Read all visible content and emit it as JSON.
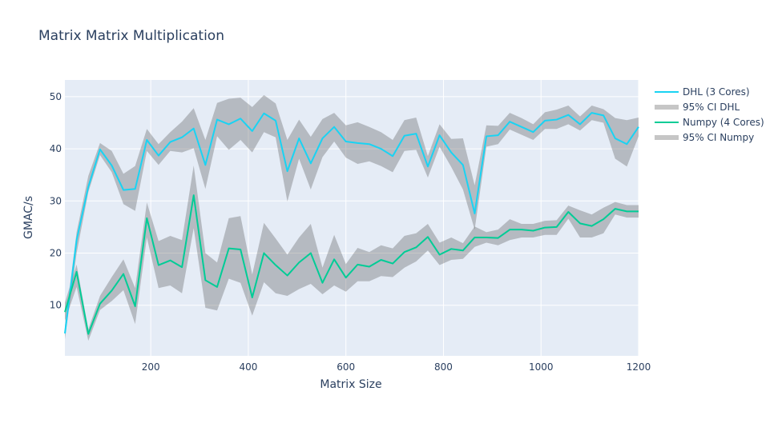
{
  "chart_data": {
    "type": "line",
    "title": "Matrix Matrix Multiplication",
    "xlabel": "Matrix Size",
    "ylabel": "GMAC/s",
    "xlim": [
      24,
      1200
    ],
    "ylim": [
      0.3,
      53.2
    ],
    "xticks": [
      200,
      400,
      600,
      800,
      1000,
      1200
    ],
    "yticks": [
      10,
      20,
      30,
      40,
      50
    ],
    "grid": true,
    "legend_position": "right",
    "x": [
      24,
      48,
      72,
      96,
      120,
      144,
      168,
      192,
      216,
      240,
      264,
      288,
      312,
      336,
      360,
      384,
      408,
      432,
      456,
      480,
      504,
      528,
      552,
      576,
      600,
      624,
      648,
      672,
      696,
      720,
      744,
      768,
      792,
      816,
      840,
      864,
      888,
      912,
      936,
      960,
      984,
      1008,
      1032,
      1056,
      1080,
      1104,
      1128,
      1152,
      1176,
      1200
    ],
    "series": [
      {
        "name": "DHL (3 Cores)",
        "ci_name": "95% CI DHL",
        "color": "#19d3f3",
        "values": [
          4.6,
          22.5,
          32.7,
          39.9,
          36.8,
          32.1,
          32.3,
          41.7,
          38.7,
          41.3,
          42.2,
          43.9,
          36.9,
          45.6,
          44.7,
          45.8,
          43.4,
          46.8,
          45.4,
          35.7,
          42.0,
          37.2,
          42.0,
          44.2,
          41.4,
          41.1,
          40.9,
          40.0,
          38.6,
          42.5,
          42.9,
          36.6,
          42.6,
          39.3,
          36.9,
          27.6,
          42.4,
          42.6,
          45.2,
          44.2,
          43.2,
          45.4,
          45.6,
          46.5,
          44.7,
          46.9,
          46.4,
          42.0,
          40.9,
          44.2
        ],
        "upper": [
          6.0,
          24.0,
          34.8,
          41.1,
          39.6,
          35.2,
          36.7,
          43.8,
          40.9,
          43.2,
          45.2,
          47.8,
          41.7,
          48.8,
          49.6,
          49.8,
          48.0,
          50.3,
          48.7,
          41.7,
          45.6,
          42.3,
          45.7,
          46.9,
          44.5,
          45.1,
          44.2,
          43.2,
          41.7,
          45.5,
          46.0,
          38.6,
          44.7,
          41.9,
          42.0,
          33.0,
          44.5,
          44.4,
          46.9,
          45.9,
          44.7,
          47.0,
          47.5,
          48.3,
          46.2,
          48.3,
          47.6,
          45.9,
          45.5,
          46.0
        ],
        "lower": [
          3.5,
          20.0,
          31.7,
          38.8,
          35.5,
          29.4,
          28.1,
          39.6,
          36.9,
          39.6,
          39.3,
          40.1,
          32.3,
          42.4,
          39.8,
          41.7,
          39.3,
          43.2,
          42.2,
          29.9,
          38.1,
          32.2,
          38.4,
          41.4,
          38.3,
          37.1,
          37.6,
          36.7,
          35.5,
          39.6,
          39.8,
          34.5,
          40.4,
          36.5,
          32.2,
          24.5,
          40.4,
          40.9,
          43.7,
          42.7,
          41.7,
          43.8,
          43.8,
          44.7,
          43.5,
          45.5,
          45.0,
          38.1,
          36.6,
          42.4
        ]
      },
      {
        "name": "Numpy (4 Cores)",
        "ci_name": "95% CI Numpy",
        "color": "#00cc96",
        "values": [
          8.7,
          16.4,
          4.5,
          10.3,
          12.8,
          16.0,
          9.8,
          26.7,
          17.7,
          18.6,
          17.3,
          31.1,
          14.8,
          13.5,
          20.9,
          20.7,
          11.5,
          20.0,
          17.7,
          15.7,
          18.2,
          20.0,
          14.3,
          18.8,
          15.3,
          17.8,
          17.4,
          18.7,
          18.0,
          20.2,
          21.1,
          23.1,
          19.7,
          20.8,
          20.5,
          23.0,
          23.0,
          22.9,
          24.5,
          24.5,
          24.3,
          24.9,
          25.0,
          27.9,
          25.7,
          25.2,
          26.5,
          28.5,
          28.0,
          28.0
        ],
        "upper": [
          10.5,
          17.8,
          5.4,
          11.8,
          15.4,
          18.8,
          13.3,
          29.7,
          22.3,
          23.3,
          22.5,
          36.8,
          20.0,
          18.2,
          26.7,
          27.1,
          15.9,
          25.8,
          22.8,
          19.7,
          23.0,
          25.6,
          17.2,
          23.5,
          17.9,
          21.0,
          20.2,
          21.5,
          20.9,
          23.3,
          23.8,
          25.6,
          22.0,
          23.0,
          21.9,
          25.1,
          24.0,
          24.5,
          26.5,
          25.6,
          25.6,
          26.2,
          26.3,
          29.1,
          28.2,
          27.4,
          28.7,
          29.8,
          29.2,
          29.2
        ],
        "lower": [
          7.0,
          13.5,
          3.2,
          9.1,
          10.8,
          12.9,
          6.4,
          23.0,
          13.3,
          13.8,
          12.3,
          24.8,
          9.5,
          9.0,
          15.1,
          14.3,
          8.0,
          14.4,
          12.3,
          11.8,
          13.1,
          14.1,
          12.1,
          13.8,
          12.6,
          14.6,
          14.6,
          15.6,
          15.4,
          17.2,
          18.4,
          20.5,
          17.7,
          18.7,
          18.9,
          21.2,
          22.0,
          21.5,
          22.5,
          23.0,
          23.0,
          23.5,
          23.5,
          26.6,
          23.0,
          23.0,
          23.8,
          27.4,
          26.8,
          26.8
        ]
      }
    ],
    "ci_fill_color": "#444444",
    "plot_bg": "#e5ecf6"
  }
}
